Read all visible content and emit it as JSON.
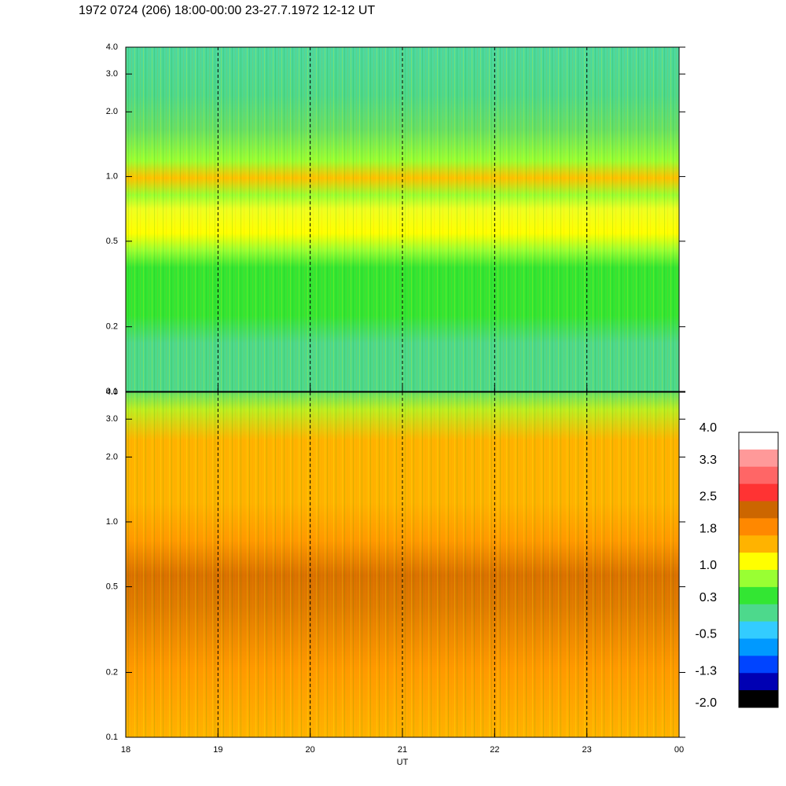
{
  "chart_data": {
    "type": "spectrogram",
    "title": "1972 0724 (206) 18:00-00:00 23-27.7.1972  12-12 UT",
    "xlabel": "UT",
    "xlim": [
      18,
      24
    ],
    "xticks": [
      18,
      19,
      20,
      21,
      22,
      23,
      {
        "value": 24,
        "label": "00"
      }
    ],
    "yscale": "log",
    "ylim": [
      0.1,
      4.0
    ],
    "yticks": [
      0.1,
      0.2,
      0.5,
      {
        "value": 1,
        "label": "1.0"
      },
      {
        "value": 2,
        "label": "2.0"
      },
      {
        "value": 3,
        "label": "3.0"
      },
      {
        "value": 4,
        "label": "4.0"
      }
    ],
    "grid": true,
    "colorbar": {
      "lim": [
        -2.0,
        4.0
      ],
      "colors": [
        "#ffffff",
        "#ff9999",
        "#ff6666",
        "#ff3333",
        "#cc6600",
        "#ff8800",
        "#ffb300",
        "#ffff00",
        "#99ff33",
        "#33e633",
        "#4dd98c",
        "#33ccff",
        "#0099ff",
        "#0044ff",
        "#0000b3",
        "#000000"
      ],
      "ticks": [
        {
          "value": 4,
          "label": "4.0"
        },
        3.3,
        2.5,
        1.8,
        {
          "value": 1,
          "label": "1.0"
        },
        0.3,
        -0.5,
        -1.3,
        {
          "value": -2,
          "label": "-2.0"
        }
      ]
    }
  }
}
